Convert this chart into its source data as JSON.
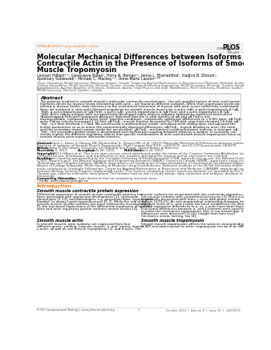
{
  "bg_color": "#ffffff",
  "open_access_text": "OPEN ACCESS Freely available online",
  "open_access_color": "#e87722",
  "title_line1": "Molecular Mechanical Differences between Isoforms of",
  "title_line2": "Contractile Actin in the Presence of Isoforms of Smooth",
  "title_line3": "Muscle Tropomyosin",
  "authors_line1": "Lennart Hilbert¹²³, Genevieve Bates², Horia N. Roman²⁴, Jenna L. Blumenthal², Hadjira B. Zitouni²,",
  "authors_line2": "Apolinary Sobieszek⁵, Michael C. Mackey¹²⁶, Anne-Marie Lauzon¹²³*",
  "affil1": "¹Dept. Physiology, McGill University, Montreal, Quebec, Canada ²Centre for Applied Mathematics in Bioscience and Medicine, Montreal, Quebec, Canada ³Meakins-",
  "affil2": "Christie Laboratories, McGill University, Montreal, Quebec, Canada ⁴Dept Biomedical Engineering, McGill University, Montreal, Quebec, Canada ⁵Institute for Biomedical",
  "affil3": "AgingResearch, Austrian Academy of Sciences, Innsbruck, Austria ⁶Dept Physics and Dept. Mathematics, McGill University, Montreal, Quebec, Canada ⁷Dept. Medicine,",
  "affil4": "McGill University, Montreal, Quebec, Canada",
  "abs_title": "Abstract",
  "abs_l1": "The proteins involved in smooth muscle’s molecular contractile mechanisms – the anti-parallel motion of actin and myosin",
  "abs_l2": "filaments driven by myosin heads interacting with actin – are found as different isoforms. While their expression levels are",
  "abs_l3": "altered in disease states, their relevance to the mechanical interaction of myosin with actin is not sufficiently understood.",
  "abs_l4": "Here, we analyzed in vitro actin filament propulsion by smooth muscle myosin for α actin (αA), α-actin-tropomyosin-β (αA-",
  "abs_l5": "Tmβ), α-actin-tropomyosin-β (αA-Tmβ), γ-actin (γA), γ-actin-tropomyosin-α (γA-Tmα), and γ-actin-tropomyosin-β (γA-",
  "abs_l6": "Tmβ). Actin sliding analysis with our specifically developed video analysis software followed by statistical assessment",
  "abs_l7": "(Bootstrapped Principal Component Analysis) indicated that the in vitro motility of αA and γA-Tmβ is not",
  "abs_l8": "distinguishable. Compared to these three ‘baseline conditions’, statistically significant differences (p < 0.05) were: αA-Tmβ –",
  "abs_l9": "actin sliding velocity increased 1.12-fold, γA-Tmβ – muscle fraction decreased to 0.68-fold, stop time elevated 1.6-fold, αA-",
  "abs_l10": "Tmβ – run time elevated 1.7-fold. We constructed a mathematical model, simulated actin sliding data, and adjusted the",
  "abs_l11": "kinetic parameters so as to mimic the experimentally observed differences: αA-Tmβ – myosin binding to actin, the main,",
  "abs_l12": "and the secondary myosin power stroke are accelerated; γA-Tmβ – mechanical coupling between myosins is stronger; αA-",
  "abs_l13": "Tmβ – the secondary power stroke is decelerated and mechanical coupling between myosins is weaker. In summary, our",
  "abs_l14": "results explain the different regulatory effects that specific combinations of actin and smooth muscle tropomyosin have on",
  "abs_l15": "smooth muscle actin-myosin interaction kinetics.",
  "cit_l1": "Citation: Hilbert L, Bates G, Roman HN, Blumenthal JL, Zitouni HB, et al. (2013) Molecular Mechanical Differences between Isoforms of Contractile Actin in the",
  "cit_l2": "Presence of Isoforms of Smooth Muscle Tropomyosin. PLoS Comput Biol 9(10): e1003275. doi:10.1371/journal.pcbi.1003275",
  "edit_l1": "Editor: Andrew D. McCulloch, University of California San Diego, United States of America",
  "dates_l1": "Received: May 3, 2013  Accepted: August 26, 2013  Published: October 24, 2013",
  "copy_l1": "Copyright: © 2013 Hilbert et al. This is an open-access article distributed under the terms of the Creative Commons Attribution License, which permits",
  "copy_l2": "unrestricted use, distribution, and reproduction in any medium, provided the original author and source are credited.",
  "fund_l1": "Funding: Project funding was provided by the Canadian Institutes of Health Research (CIHR, www.cihr-irsc.gc.ca), the National Institutes of Health (NIH R01: HL",
  "fund_l2": "57461; www.nih.gov), the Natural Sciences and Engineering Research (NSERC) Council of Canada (NSERC, www.nserc-crsng.ca), and the Mathematics of Information",
  "fund_l3": "Technology and Complex Systems (MITACS, www.mitacs.ca). Funding for LH was provided by a International Foerderprof Stipendium (Foerderung des deutschen",
  "fund_l4": "Netzes of College fellowship, McGill Faculty of Medicine (mcgill.ca/medicine). Research Institute of the McGill University Health Centre (RI-MUHC,",
  "fund_l5": "muhc.ca/research) Graduate Fellowships, Centre for Applied Mathematics in Bioscience and Medicine (CAMBAM, www.mcgill.ca/cambam), Stipend, McGill",
  "fund_l6": "Systems Biology Training Program (www.mcgill.ca/sb). The Calcasa computing cluster (resource.dunamis.ca) provided by the CLUMEQ consortium and Compute",
  "fund_l7": "Canada was used for stochastic simulations. The funders had no role in study design, data collection and analysis, decision to publish, or preparation of the",
  "fund_l8": "manuscript.",
  "comp_l1": "Competing Interests: The authors have declared that no competing interests exist.",
  "email_l1": "* Email: anne.lauzon@mcgill.ca",
  "intro_title": "Introduction",
  "intro_sub1": "Smooth muscle contractile protein expression",
  "intro_c1_l1": "Differential expression of smooth muscle contractile proteins has",
  "intro_c1_l2": "been associated with organismal development [1], contractile",
  "intro_c1_l3": "phenotypes [2-13], and pathologies, e.g. parasitism blast, hypertrophic",
  "intro_c1_l4": "bladder, or airway hyper-responsiveness [5-7]. While the role of the",
  "intro_c1_l5": "smooth muscle myosin isoforms has been extensively investigated [1-",
  "intro_c1_l6": "8], the functional implications of the differential expression of specific",
  "intro_c1_l7": "actin and actin regulatory protein isoforms remain elusive [4].",
  "intro_c2_l1": "muscle isoforms are associated with the contractile apparatus, the",
  "intro_c2_l2": "non-muscle isoforms with cytoskeletal structures [3]. Much α-actin",
  "intro_c2_l3": "is generally associated with more γ-actin with phase smooth",
  "intro_c2_l4": "muscle [3,20,21]. An anti-proportional relationship between the",
  "intro_c2_l5": "absolute levels of α- and γ-actin has been established [3]. Illness-",
  "intro_c2_l6": "related expression differences in α- vs. γ-actin have been found [4].",
  "intro_c2_l7": "Functional differences between α- and γ-isoforms were searched for",
  "intro_c2_l8": "in molecular mechanics experiments, but, to our knowledge, no",
  "intro_c2_l9": "differences were detected [12,15]. Insight from time level",
  "intro_c2_l10": "mechanics seems lacking, too [4].",
  "intro_sub2": "Smooth muscle actin",
  "intro_sub3": "Smooth muscle tropomyosin",
  "intro_c1_s2_l1": "In smooth muscle, actin isoforms are expressed from four",
  "intro_c1_s2_l2": "different genes, yielding ‘vascular muscle’ α- and ‘enteric muscle’",
  "intro_c1_s2_l3": "γ-actin, as well as non-muscle (cytoplasmic) β- and δ-actin. The",
  "intro_c2_s3_l1": "Smooth muscle tropomyosin affects the weak-to-strong binding",
  "intro_c2_s3_l2": "of ATP-activated myosin to actin: tropomyosin can be in an SBS",
  "footer_left": "PLOS Computational Biology | www.ploscompbiol.org",
  "footer_center": "1",
  "footer_right": "October 2013  |  Volume 9  |  Issue 10  |  e1003275",
  "border_color": "#cccccc",
  "abs_border_color": "#aaaaaa",
  "orange_color": "#e87722",
  "text_color": "#222222",
  "gray_color": "#555555"
}
